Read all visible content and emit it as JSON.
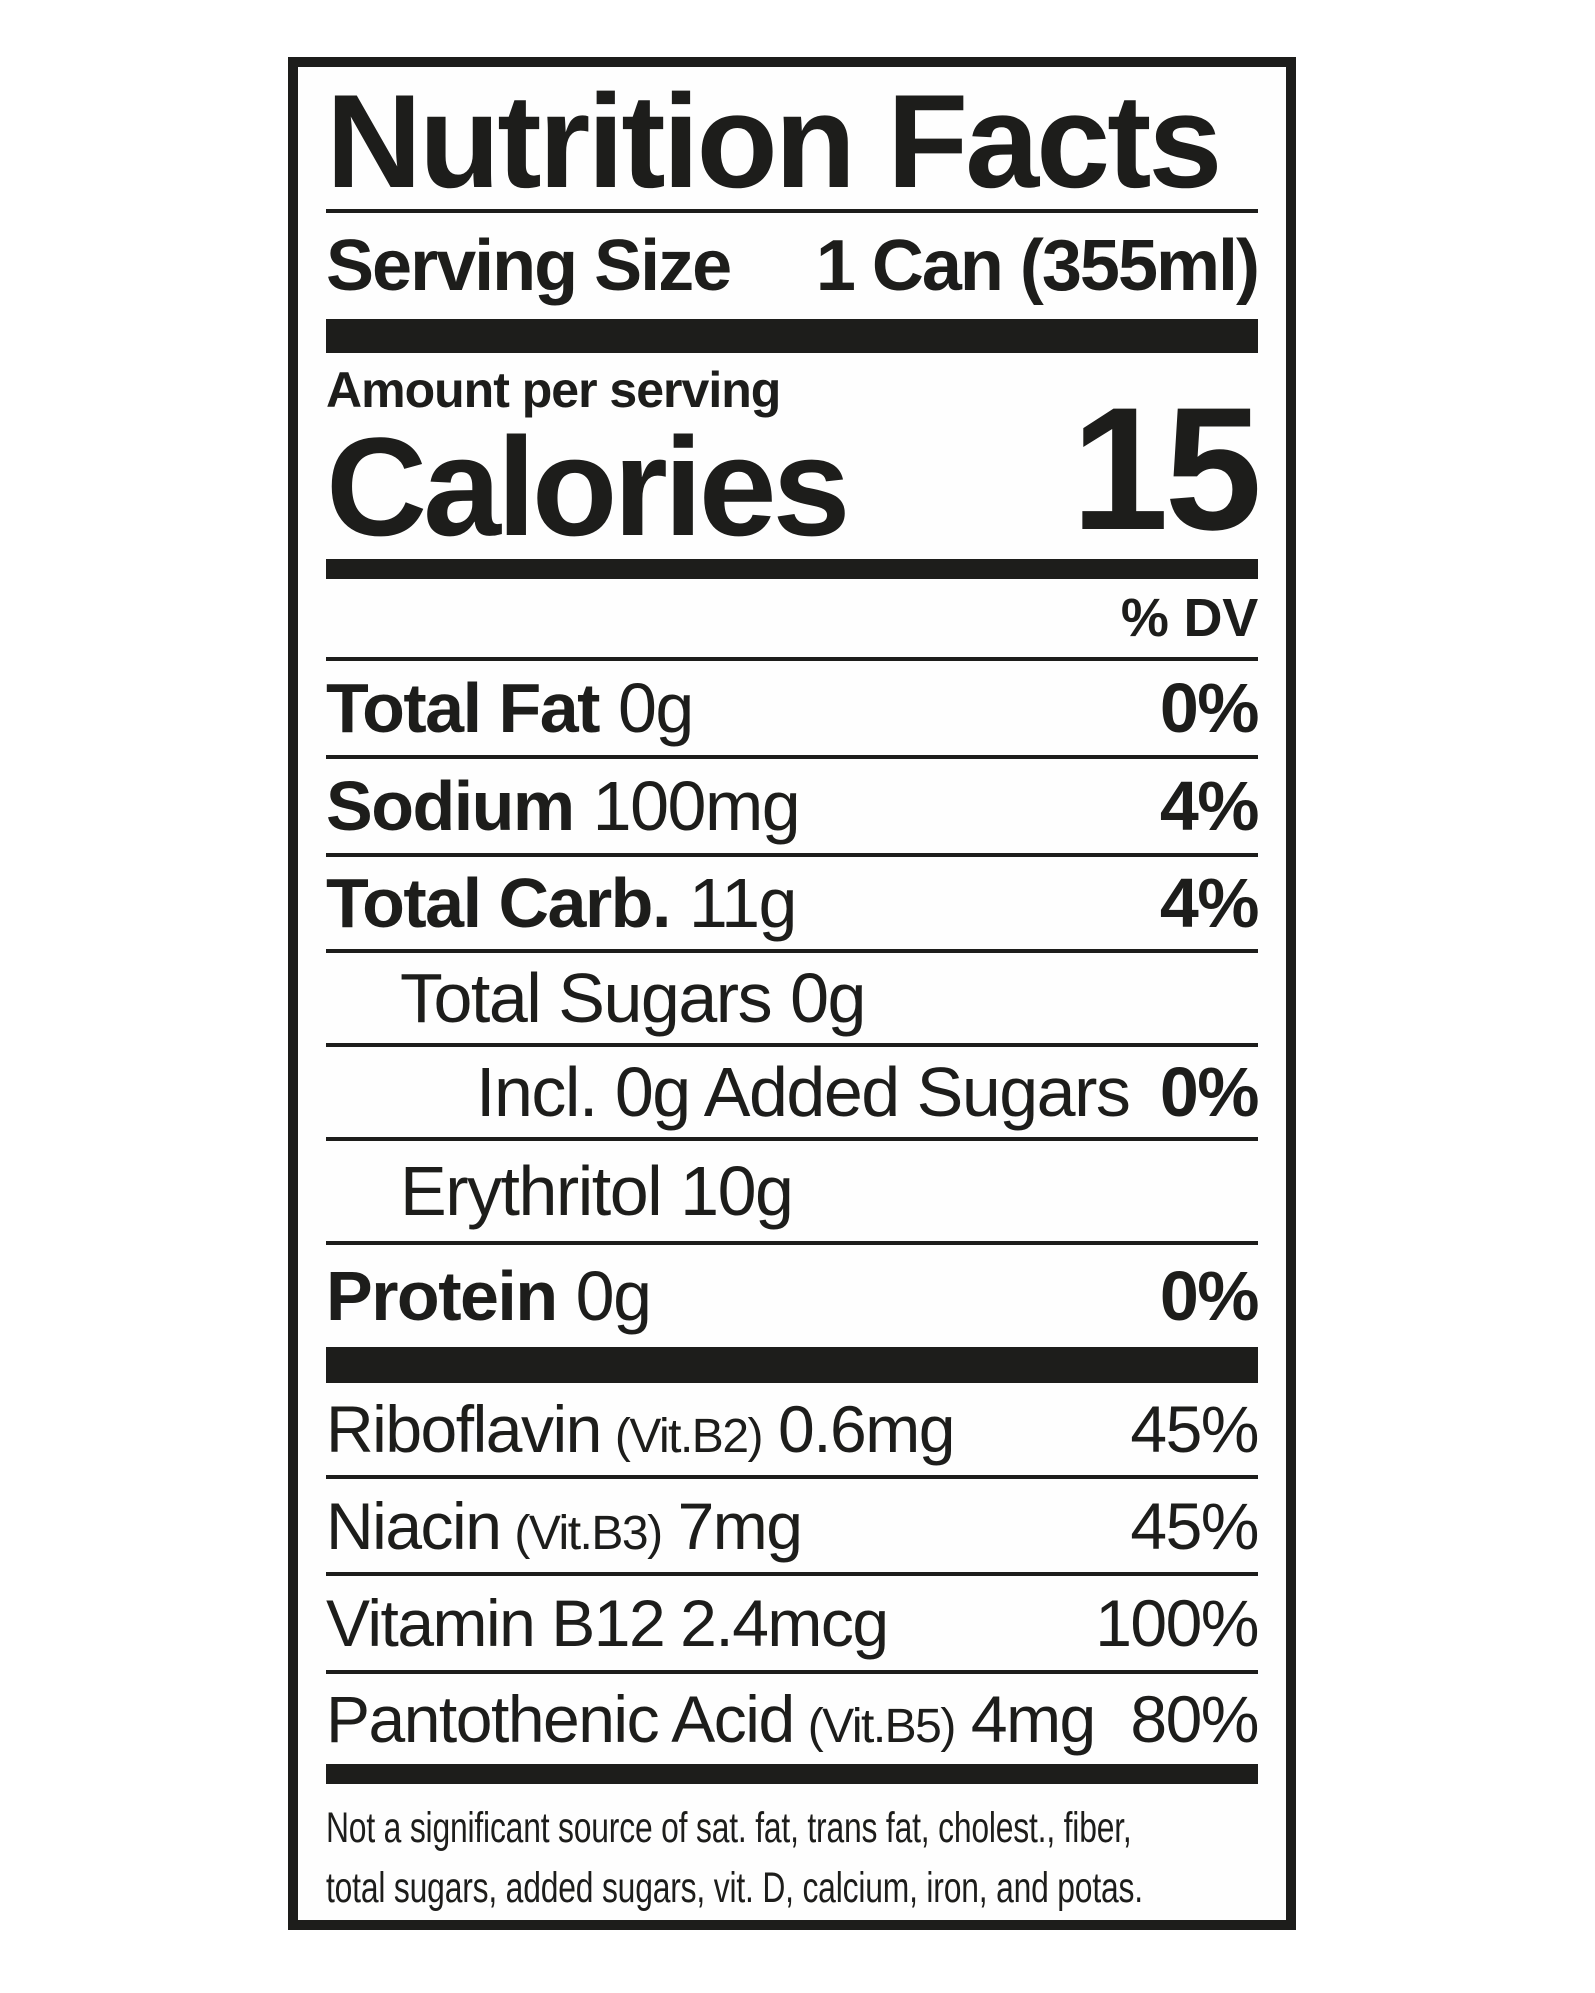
{
  "label": {
    "title": "Nutrition Facts",
    "serving": {
      "label": "Serving Size",
      "value": "1 Can (355ml)"
    },
    "amount_per_serving": "Amount per serving",
    "calories": {
      "label": "Calories",
      "value": "15"
    },
    "dv_header": "% DV",
    "nutrient_rows": [
      {
        "name": "Total Fat",
        "value": "0g",
        "percent": "0%"
      },
      {
        "name": "Sodium",
        "value": "100mg",
        "percent": "4%"
      },
      {
        "name": "Total Carb.",
        "value": "11g",
        "percent": "4%"
      },
      {
        "name": "Total Sugars",
        "value": "0g"
      },
      {
        "name": "Incl. 0g Added Sugars",
        "percent": "0%"
      },
      {
        "name": "Erythritol",
        "value": "10g"
      },
      {
        "name": "Protein",
        "value": "0g",
        "percent": "0%"
      }
    ],
    "vitamin_rows": [
      {
        "name": "Riboflavin",
        "paren": "(Vit.B2)",
        "value": "0.6mg",
        "percent": "45%"
      },
      {
        "name": "Niacin",
        "paren": "(Vit.B3)",
        "value": "7mg",
        "percent": "45%"
      },
      {
        "name": "Vitamin B12",
        "value": "2.4mcg",
        "percent": "100%"
      },
      {
        "name": "Pantothenic Acid",
        "paren": "(Vit.B5)",
        "value": "4mg",
        "percent": "80%"
      }
    ],
    "footnote_line1": "Not a significant source of sat. fat, trans fat, cholest., fiber,",
    "footnote_line2": "total sugars, added sugars, vit. D, calcium, iron, and potas.",
    "colors": {
      "ink": "#1d1d1b",
      "background": "#ffffff"
    }
  }
}
